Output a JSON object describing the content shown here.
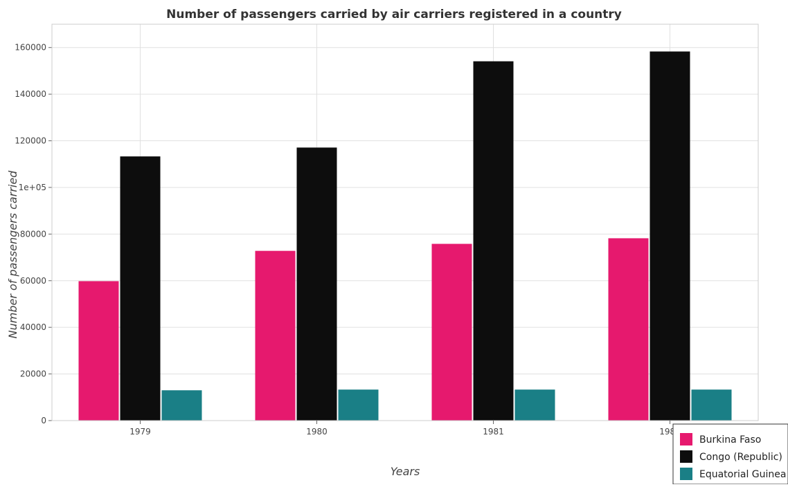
{
  "chart_data": {
    "type": "bar",
    "title": "Number of passengers carried by air carriers registered in a country",
    "xlabel": "Years",
    "ylabel": "Number of passengers carried",
    "categories": [
      "1979",
      "1980",
      "1981",
      "1982"
    ],
    "ylim": [
      0,
      170000
    ],
    "yticks": [
      0,
      20000,
      40000,
      60000,
      80000,
      100000,
      120000,
      140000,
      160000
    ],
    "ytick_labels": [
      "0",
      "20000",
      "40000",
      "60000",
      "80000",
      "1e+05",
      "120000",
      "140000",
      "160000"
    ],
    "grid": true,
    "legend_position": "bottom-right",
    "series": [
      {
        "name": "Burkina Faso",
        "color": "#e6196e",
        "values": [
          59800,
          72800,
          75800,
          78200
        ]
      },
      {
        "name": "Congo (Republic)",
        "color": "#0d0d0d",
        "values": [
          113300,
          117100,
          154100,
          158300
        ]
      },
      {
        "name": "Equatorial Guinea",
        "color": "#1a7f86",
        "values": [
          13000,
          13300,
          13300,
          13300
        ]
      }
    ]
  }
}
